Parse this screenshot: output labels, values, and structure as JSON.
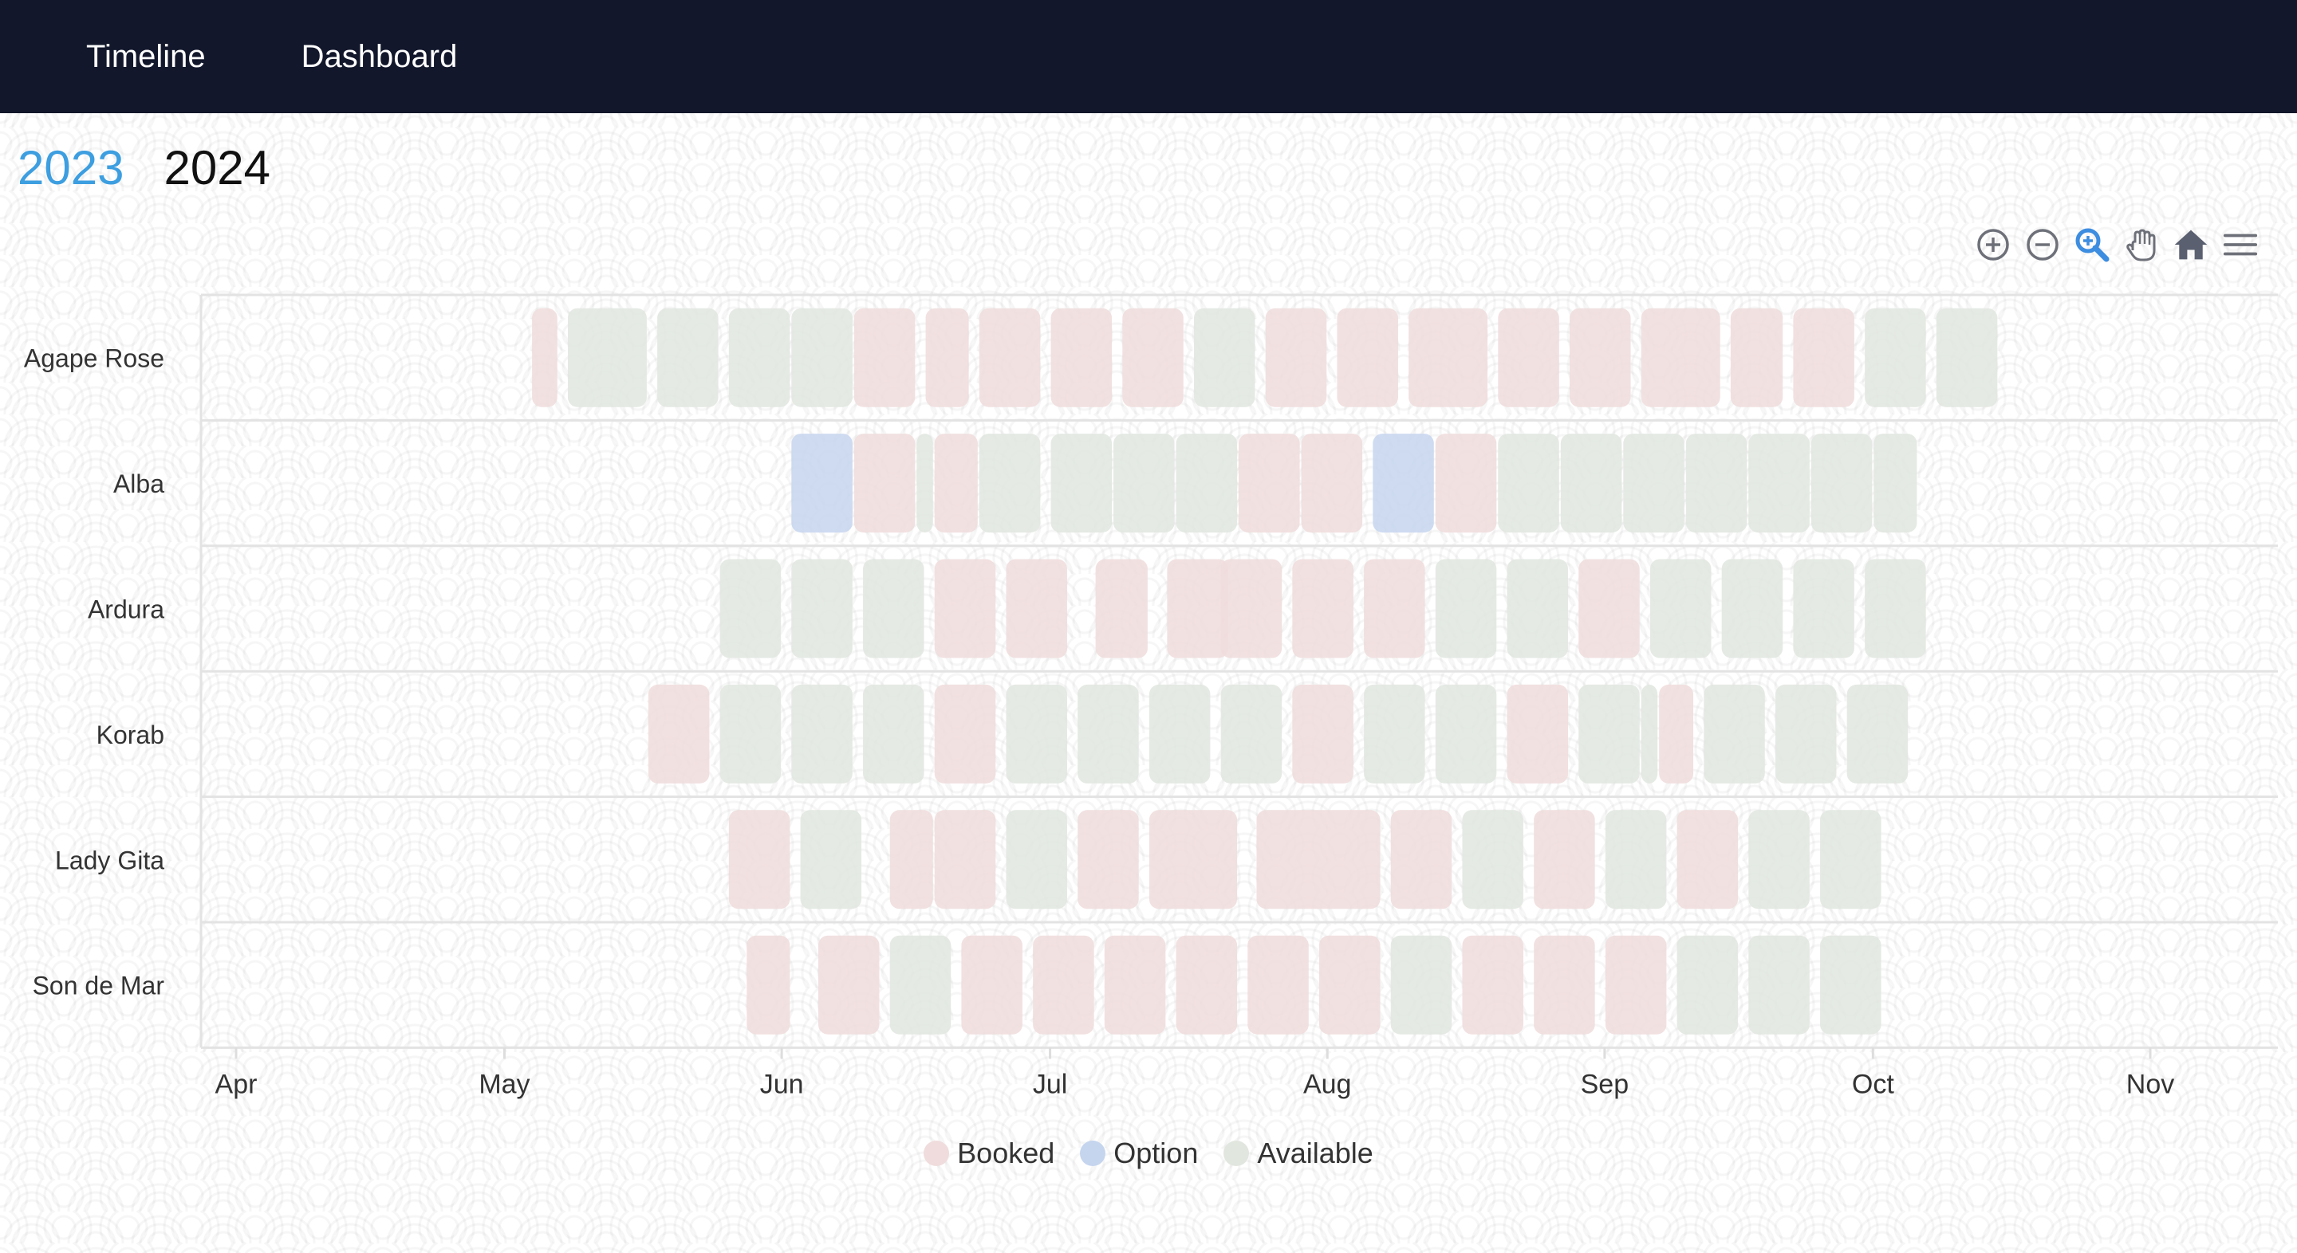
{
  "nav": {
    "timeline_label": "Timeline",
    "dashboard_label": "Dashboard"
  },
  "years": {
    "active": "2023",
    "inactive": "2024"
  },
  "toolbar": {
    "icons": [
      "zoom-in-icon",
      "zoom-out-icon",
      "zoom-select-icon",
      "pan-hand-icon",
      "home-reset-icon",
      "menu-icon"
    ]
  },
  "colors": {
    "booked": "#f0dcdc",
    "option": "#c6d5ee",
    "available": "#e1e6df",
    "active_year": "#3d9ee0",
    "active_tool": "#3d8de0",
    "tool": "#6e7079",
    "navbar": "#12172b"
  },
  "chart_data": {
    "type": "timeline",
    "categories": [
      "Agape Rose",
      "Alba",
      "Ardura",
      "Korab",
      "Lady Gita",
      "Son de Mar"
    ],
    "x_ticks": [
      "Apr",
      "May",
      "Jun",
      "Jul",
      "Aug",
      "Sep",
      "Oct",
      "Nov"
    ],
    "x_tick_dates": [
      "2023-04-01",
      "2023-05-01",
      "2023-06-01",
      "2023-07-01",
      "2023-08-01",
      "2023-09-01",
      "2023-10-01",
      "2023-11-01"
    ],
    "xlim": [
      "2023-03-28",
      "2023-11-14"
    ],
    "legend": [
      "Booked",
      "Option",
      "Available"
    ],
    "legend_position": "bottom-center",
    "series": [
      {
        "name": "Booked",
        "status": "booked",
        "bars": [
          [
            "Agape Rose",
            "2023-05-04",
            "2023-05-07"
          ],
          [
            "Agape Rose",
            "2023-06-09",
            "2023-06-16"
          ],
          [
            "Agape Rose",
            "2023-06-17",
            "2023-06-22"
          ],
          [
            "Agape Rose",
            "2023-06-23",
            "2023-06-30"
          ],
          [
            "Agape Rose",
            "2023-07-01",
            "2023-07-08"
          ],
          [
            "Agape Rose",
            "2023-07-09",
            "2023-07-16"
          ],
          [
            "Agape Rose",
            "2023-07-25",
            "2023-08-01"
          ],
          [
            "Agape Rose",
            "2023-08-02",
            "2023-08-09"
          ],
          [
            "Agape Rose",
            "2023-08-10",
            "2023-08-19"
          ],
          [
            "Agape Rose",
            "2023-08-20",
            "2023-08-27"
          ],
          [
            "Agape Rose",
            "2023-08-28",
            "2023-09-04"
          ],
          [
            "Agape Rose",
            "2023-09-05",
            "2023-09-14"
          ],
          [
            "Agape Rose",
            "2023-09-15",
            "2023-09-21"
          ],
          [
            "Agape Rose",
            "2023-09-22",
            "2023-09-29"
          ],
          [
            "Alba",
            "2023-06-09",
            "2023-06-16"
          ],
          [
            "Alba",
            "2023-06-18",
            "2023-06-23"
          ],
          [
            "Alba",
            "2023-07-22",
            "2023-07-29"
          ],
          [
            "Alba",
            "2023-07-29",
            "2023-08-05"
          ],
          [
            "Alba",
            "2023-08-13",
            "2023-08-20"
          ],
          [
            "Ardura",
            "2023-06-18",
            "2023-06-25"
          ],
          [
            "Ardura",
            "2023-06-26",
            "2023-07-03"
          ],
          [
            "Ardura",
            "2023-07-06",
            "2023-07-12"
          ],
          [
            "Ardura",
            "2023-07-14",
            "2023-07-21"
          ],
          [
            "Ardura",
            "2023-07-20",
            "2023-07-27"
          ],
          [
            "Ardura",
            "2023-07-28",
            "2023-08-04"
          ],
          [
            "Ardura",
            "2023-08-05",
            "2023-08-12"
          ],
          [
            "Ardura",
            "2023-08-29",
            "2023-09-05"
          ],
          [
            "Korab",
            "2023-05-17",
            "2023-05-24"
          ],
          [
            "Korab",
            "2023-06-18",
            "2023-06-25"
          ],
          [
            "Korab",
            "2023-07-28",
            "2023-08-04"
          ],
          [
            "Korab",
            "2023-08-21",
            "2023-08-28"
          ],
          [
            "Korab",
            "2023-09-07",
            "2023-09-11"
          ],
          [
            "Lady Gita",
            "2023-05-26",
            "2023-06-02"
          ],
          [
            "Lady Gita",
            "2023-06-13",
            "2023-06-18"
          ],
          [
            "Lady Gita",
            "2023-06-18",
            "2023-06-25"
          ],
          [
            "Lady Gita",
            "2023-07-04",
            "2023-07-11"
          ],
          [
            "Lady Gita",
            "2023-07-12",
            "2023-07-22"
          ],
          [
            "Lady Gita",
            "2023-07-24",
            "2023-08-07"
          ],
          [
            "Lady Gita",
            "2023-08-08",
            "2023-08-15"
          ],
          [
            "Lady Gita",
            "2023-08-24",
            "2023-08-31"
          ],
          [
            "Lady Gita",
            "2023-09-09",
            "2023-09-16"
          ],
          [
            "Son de Mar",
            "2023-05-28",
            "2023-06-02"
          ],
          [
            "Son de Mar",
            "2023-06-05",
            "2023-06-12"
          ],
          [
            "Son de Mar",
            "2023-06-21",
            "2023-06-28"
          ],
          [
            "Son de Mar",
            "2023-06-29",
            "2023-07-06"
          ],
          [
            "Son de Mar",
            "2023-07-07",
            "2023-07-14"
          ],
          [
            "Son de Mar",
            "2023-07-15",
            "2023-07-22"
          ],
          [
            "Son de Mar",
            "2023-07-23",
            "2023-07-30"
          ],
          [
            "Son de Mar",
            "2023-07-31",
            "2023-08-07"
          ],
          [
            "Son de Mar",
            "2023-08-16",
            "2023-08-23"
          ],
          [
            "Son de Mar",
            "2023-08-24",
            "2023-08-31"
          ],
          [
            "Son de Mar",
            "2023-09-01",
            "2023-09-08"
          ]
        ]
      },
      {
        "name": "Option",
        "status": "option",
        "bars": [
          [
            "Alba",
            "2023-06-02",
            "2023-06-09"
          ],
          [
            "Alba",
            "2023-08-06",
            "2023-08-13"
          ]
        ]
      },
      {
        "name": "Available",
        "status": "available",
        "bars": [
          [
            "Agape Rose",
            "2023-05-08",
            "2023-05-17"
          ],
          [
            "Agape Rose",
            "2023-05-18",
            "2023-05-25"
          ],
          [
            "Agape Rose",
            "2023-05-26",
            "2023-06-02"
          ],
          [
            "Agape Rose",
            "2023-06-02",
            "2023-06-09"
          ],
          [
            "Agape Rose",
            "2023-07-17",
            "2023-07-24"
          ],
          [
            "Agape Rose",
            "2023-09-30",
            "2023-10-07"
          ],
          [
            "Agape Rose",
            "2023-10-08",
            "2023-10-15"
          ],
          [
            "Alba",
            "2023-06-16",
            "2023-06-18"
          ],
          [
            "Alba",
            "2023-06-23",
            "2023-06-30"
          ],
          [
            "Alba",
            "2023-07-01",
            "2023-07-08"
          ],
          [
            "Alba",
            "2023-07-08",
            "2023-07-15"
          ],
          [
            "Alba",
            "2023-07-15",
            "2023-07-22"
          ],
          [
            "Alba",
            "2023-08-20",
            "2023-08-27"
          ],
          [
            "Alba",
            "2023-08-27",
            "2023-09-03"
          ],
          [
            "Alba",
            "2023-09-03",
            "2023-09-10"
          ],
          [
            "Alba",
            "2023-09-10",
            "2023-09-17"
          ],
          [
            "Alba",
            "2023-09-17",
            "2023-09-24"
          ],
          [
            "Alba",
            "2023-09-24",
            "2023-10-01"
          ],
          [
            "Alba",
            "2023-10-01",
            "2023-10-06"
          ],
          [
            "Ardura",
            "2023-05-25",
            "2023-06-01"
          ],
          [
            "Ardura",
            "2023-06-02",
            "2023-06-09"
          ],
          [
            "Ardura",
            "2023-06-10",
            "2023-06-17"
          ],
          [
            "Ardura",
            "2023-08-13",
            "2023-08-20"
          ],
          [
            "Ardura",
            "2023-08-21",
            "2023-08-28"
          ],
          [
            "Ardura",
            "2023-09-06",
            "2023-09-13"
          ],
          [
            "Ardura",
            "2023-09-14",
            "2023-09-21"
          ],
          [
            "Ardura",
            "2023-09-22",
            "2023-09-29"
          ],
          [
            "Ardura",
            "2023-09-30",
            "2023-10-07"
          ],
          [
            "Korab",
            "2023-05-25",
            "2023-06-01"
          ],
          [
            "Korab",
            "2023-06-02",
            "2023-06-09"
          ],
          [
            "Korab",
            "2023-06-10",
            "2023-06-17"
          ],
          [
            "Korab",
            "2023-06-26",
            "2023-07-03"
          ],
          [
            "Korab",
            "2023-07-04",
            "2023-07-11"
          ],
          [
            "Korab",
            "2023-07-12",
            "2023-07-19"
          ],
          [
            "Korab",
            "2023-07-20",
            "2023-07-27"
          ],
          [
            "Korab",
            "2023-08-05",
            "2023-08-12"
          ],
          [
            "Korab",
            "2023-08-13",
            "2023-08-20"
          ],
          [
            "Korab",
            "2023-08-29",
            "2023-09-05"
          ],
          [
            "Korab",
            "2023-09-05",
            "2023-09-07"
          ],
          [
            "Korab",
            "2023-09-12",
            "2023-09-19"
          ],
          [
            "Korab",
            "2023-09-20",
            "2023-09-27"
          ],
          [
            "Korab",
            "2023-09-28",
            "2023-10-05"
          ],
          [
            "Lady Gita",
            "2023-06-03",
            "2023-06-10"
          ],
          [
            "Lady Gita",
            "2023-06-26",
            "2023-07-03"
          ],
          [
            "Lady Gita",
            "2023-08-16",
            "2023-08-23"
          ],
          [
            "Lady Gita",
            "2023-09-01",
            "2023-09-08"
          ],
          [
            "Lady Gita",
            "2023-09-17",
            "2023-09-24"
          ],
          [
            "Lady Gita",
            "2023-09-25",
            "2023-10-02"
          ],
          [
            "Son de Mar",
            "2023-06-13",
            "2023-06-20"
          ],
          [
            "Son de Mar",
            "2023-08-08",
            "2023-08-15"
          ],
          [
            "Son de Mar",
            "2023-09-09",
            "2023-09-16"
          ],
          [
            "Son de Mar",
            "2023-09-17",
            "2023-09-24"
          ],
          [
            "Son de Mar",
            "2023-09-25",
            "2023-10-02"
          ]
        ]
      }
    ]
  }
}
